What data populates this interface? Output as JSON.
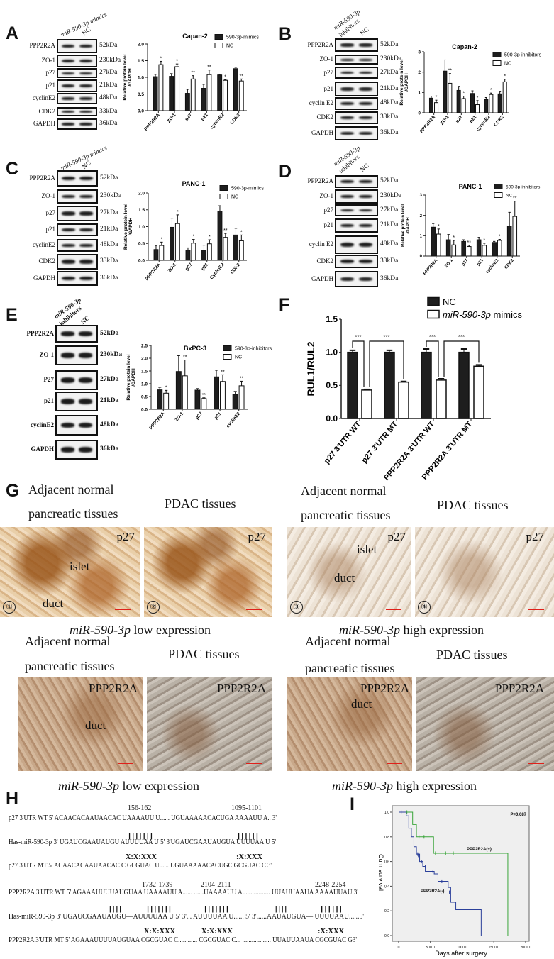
{
  "panel_labels": {
    "A": "A",
    "B": "B",
    "C": "C",
    "D": "D",
    "E": "E",
    "F": "F",
    "G": "G",
    "H": "H",
    "I": "I"
  },
  "blots": {
    "A": {
      "lanes": [
        "miR-590-3p mimics",
        "NC"
      ],
      "rows": [
        "PPP2R2A",
        "ZO-1",
        "p27",
        "p21",
        "cyclinE2",
        "CDK2",
        "GAPDH"
      ],
      "kda": [
        "52kDa",
        "230kDa",
        "27kDa",
        "21kDa",
        "48kDa",
        "33kDa",
        "36kDa"
      ]
    },
    "B": {
      "lanes": [
        "miR-590-3p",
        "inhibitors",
        "NC"
      ],
      "rows": [
        "PPP2R2A",
        "ZO-1",
        "p27",
        "p21",
        "cyclin E2",
        "CDK2",
        "GAPDH"
      ],
      "kda": [
        "52kDa",
        "230kDa",
        "27kDa",
        "21kDa",
        "48kDa",
        "33kDa",
        "36kDa"
      ]
    },
    "C": {
      "lanes": [
        "miR-590-3p mimics",
        "NC"
      ],
      "rows": [
        "PPP2R2A",
        "ZO-1",
        "p27",
        "p21",
        "cyclinE2",
        "CDK2",
        "GAPDH"
      ],
      "kda": [
        "52kDa",
        "230kDa",
        "27kDa",
        "21kDa",
        "48kDa",
        "33kDa",
        "36kDa"
      ]
    },
    "D": {
      "lanes": [
        "miR-590-3p",
        "inhibitors",
        "NC"
      ],
      "rows": [
        "PPP2R2A",
        "ZO-1",
        "p27",
        "p21",
        "cyclin E2",
        "CDK2",
        "GAPDH"
      ],
      "kda": [
        "52kDa",
        "230kDa",
        "27kDa",
        "21kDa",
        "48kDa",
        "33kDa",
        "36kDa"
      ]
    },
    "E": {
      "lanes": [
        "miR-590-3p",
        "inhibitors",
        "NC"
      ],
      "rows": [
        "PPP2R2A",
        "ZO-1",
        "P27",
        "p21",
        "cyclinE2",
        "GAPDH"
      ],
      "kda": [
        "52kDa",
        "230kDa",
        "27kDa",
        "21kDa",
        "48kDa",
        "36kDa"
      ]
    }
  },
  "chart_data": [
    {
      "id": "A",
      "type": "bar",
      "title": "Capan-2",
      "ylabel": [
        "Relative protein level",
        "/GAPDH"
      ],
      "ylim": [
        0,
        2.0
      ],
      "yticks": [
        "0.0",
        "0.5",
        "1.0",
        "1.5",
        "2.0"
      ],
      "categories": [
        "PPP2R2A",
        "ZO-1",
        "p27",
        "p21",
        "cyclinE2",
        "CDK2"
      ],
      "series": [
        {
          "name": "590-3p-mimics",
          "values": [
            1.02,
            1.03,
            0.52,
            0.67,
            1.07,
            1.26
          ],
          "errors": [
            0.07,
            0.08,
            0.12,
            0.12,
            0.02,
            0.04
          ]
        },
        {
          "name": "NC",
          "values": [
            1.38,
            1.32,
            0.95,
            1.08,
            0.91,
            0.89
          ],
          "errors": [
            0.1,
            0.08,
            0.1,
            0.14,
            0.02,
            0.06
          ]
        }
      ],
      "significance": [
        "*",
        "*",
        "**",
        "**",
        "*",
        "**"
      ],
      "legend": "top-right"
    },
    {
      "id": "B",
      "type": "bar",
      "title": "Capan-2",
      "ylabel": [
        "Relative protein level",
        "/GAPDH"
      ],
      "ylim": [
        0,
        3
      ],
      "yticks": [
        "0",
        "1",
        "2",
        "3"
      ],
      "categories": [
        "PPP2R2A",
        "ZO-1",
        "p27",
        "p21",
        "cyclinE2",
        "CDK2"
      ],
      "series": [
        {
          "name": "590-3p-inhibitors",
          "values": [
            0.72,
            2.05,
            1.1,
            0.95,
            0.65,
            0.93
          ],
          "errors": [
            0.1,
            0.55,
            0.2,
            0.13,
            0.1,
            0.13
          ]
        },
        {
          "name": "NC",
          "values": [
            0.5,
            1.45,
            0.7,
            0.4,
            0.9,
            1.52
          ],
          "errors": [
            0.12,
            0.48,
            0.12,
            0.2,
            0.07,
            0.13
          ]
        }
      ],
      "significance": [
        "*",
        "**",
        "*",
        "*",
        "*",
        "*"
      ],
      "legend": "top-right"
    },
    {
      "id": "C",
      "type": "bar",
      "title": "PANC-1",
      "ylabel": [
        "Relative protein level",
        "/GAPDH"
      ],
      "ylim": [
        0,
        2.0
      ],
      "yticks": [
        "0.0",
        "0.5",
        "1.0",
        "1.5",
        "2.0"
      ],
      "categories": [
        "PPP2R2A",
        "ZO-1",
        "p27",
        "p21",
        "CyclinE2",
        "CDK2"
      ],
      "series": [
        {
          "name": "590-3p-mimics",
          "values": [
            0.32,
            0.98,
            0.3,
            0.3,
            1.46,
            0.75
          ],
          "errors": [
            0.12,
            0.27,
            0.07,
            0.15,
            0.16,
            0.2
          ]
        },
        {
          "name": "NC",
          "values": [
            0.44,
            1.09,
            0.51,
            0.49,
            0.68,
            0.58
          ],
          "errors": [
            0.1,
            0.26,
            0.11,
            0.12,
            0.12,
            0.17
          ]
        }
      ],
      "significance": [
        "*",
        "*",
        "*",
        "*",
        "**",
        "*"
      ],
      "legend": "top-right"
    },
    {
      "id": "D",
      "type": "bar",
      "title": "PANC-1",
      "ylabel": [
        "Relative protein level",
        "/GAPDH"
      ],
      "ylim": [
        0,
        3
      ],
      "yticks": [
        "0",
        "1",
        "2",
        "3"
      ],
      "categories": [
        "PPP2R2A",
        "ZO-1",
        "p27",
        "p21",
        "cyclinE2",
        "CDK2"
      ],
      "series": [
        {
          "name": "590-3p-inhibitors",
          "values": [
            1.42,
            0.8,
            0.72,
            0.8,
            0.67,
            1.47
          ],
          "errors": [
            0.18,
            0.26,
            0.08,
            0.12,
            0.05,
            0.68
          ]
        },
        {
          "name": "NC",
          "values": [
            1.08,
            0.55,
            0.47,
            0.53,
            0.77,
            1.95
          ],
          "errors": [
            0.25,
            0.22,
            0.06,
            0.1,
            0.05,
            0.75
          ]
        }
      ],
      "significance": [
        "*",
        "*",
        "**",
        "*",
        "*",
        "**"
      ],
      "legend": "top-right"
    },
    {
      "id": "E",
      "type": "bar",
      "title": "BxPC-3",
      "ylabel": [
        "Relative protein level",
        "/GAPDH"
      ],
      "ylim": [
        0,
        2.5
      ],
      "yticks": [
        "0.0",
        "0.5",
        "1.0",
        "1.5",
        "2.0",
        "2.5"
      ],
      "categories": [
        "PPP2R2A",
        "ZO-1",
        "p27",
        "p21",
        "cyclinE2"
      ],
      "series": [
        {
          "name": "590-3p-inhibitors",
          "values": [
            0.76,
            1.48,
            0.75,
            1.27,
            0.58
          ],
          "errors": [
            0.1,
            0.62,
            0.06,
            0.26,
            0.12
          ]
        },
        {
          "name": "NC",
          "values": [
            0.63,
            1.31,
            0.42,
            1.09,
            0.92
          ],
          "errors": [
            0.11,
            0.62,
            0.03,
            0.26,
            0.18
          ]
        }
      ],
      "significance": [
        "*",
        "**",
        "**",
        "**",
        "**"
      ],
      "legend": "top-right"
    },
    {
      "id": "F",
      "type": "bar",
      "title": "",
      "ylabel": [
        "RUL1/RUL2"
      ],
      "ylim": [
        0,
        1.5
      ],
      "yticks": [
        "0.0",
        "0.5",
        "1.0",
        "1.5"
      ],
      "categories": [
        "p27 3'UTR WT",
        "p27 3'UTR MT",
        "PPP2R2A  3'UTR WT",
        "PPP2R2A  3'UTR MT"
      ],
      "series": [
        {
          "name": "NC",
          "values": [
            1.0,
            1.0,
            1.0,
            1.0
          ],
          "errors": [
            0.03,
            0.03,
            0.05,
            0.05
          ]
        },
        {
          "name": "miR-590-3p mimics",
          "values": [
            0.43,
            0.55,
            0.58,
            0.79
          ],
          "errors": [
            0.01,
            0.01,
            0.02,
            0.02
          ]
        }
      ],
      "brackets": [
        {
          "from": [
            0,
            0
          ],
          "to": [
            0,
            1
          ],
          "label": "***"
        },
        {
          "from": [
            0,
            1
          ],
          "to": [
            1,
            1
          ],
          "label": "***"
        },
        {
          "from": [
            2,
            0
          ],
          "to": [
            2,
            1
          ],
          "label": "***"
        },
        {
          "from": [
            2,
            1
          ],
          "to": [
            3,
            1
          ],
          "label": "***"
        }
      ],
      "legend": "top-right"
    },
    {
      "id": "I",
      "type": "line",
      "subtype": "kaplan-meier",
      "xlabel": "Days after surgery",
      "ylabel": "Cum survival",
      "xlim": [
        0,
        2000
      ],
      "ylim": [
        0,
        1.0
      ],
      "xticks": [
        "0",
        "500.0",
        "1000.0",
        "1500.0",
        "2000.0"
      ],
      "yticks": [
        "0.0",
        "0.2",
        "0.4",
        "0.6",
        "0.8",
        "1.0"
      ],
      "annotation": "P=0.087",
      "series": [
        {
          "name": "PPP2R2A(+)",
          "color": "#3aa53a",
          "x": [
            0,
            220,
            280,
            550,
            1720,
            1720
          ],
          "y": [
            1.0,
            0.9,
            0.8,
            0.667,
            0.667,
            0.0
          ],
          "censored": [
            [
              130,
              1.0
            ],
            [
              320,
              0.8
            ],
            [
              400,
              0.8
            ],
            [
              580,
              0.667
            ],
            [
              740,
              0.667
            ],
            [
              860,
              0.667
            ]
          ]
        },
        {
          "name": "PPP2R2A(-)",
          "color": "#2a3f9a",
          "x": [
            0,
            120,
            160,
            200,
            240,
            280,
            330,
            380,
            420,
            560,
            620,
            780,
            820,
            900,
            1300,
            1300
          ],
          "y": [
            1.0,
            0.97,
            0.87,
            0.8,
            0.72,
            0.66,
            0.6,
            0.56,
            0.52,
            0.5,
            0.44,
            0.39,
            0.27,
            0.21,
            0.21,
            0.0
          ],
          "censored": [
            [
              40,
              1.0
            ],
            [
              300,
              0.66
            ],
            [
              310,
              0.65
            ],
            [
              360,
              0.6
            ],
            [
              380,
              0.59
            ],
            [
              420,
              0.56
            ],
            [
              540,
              0.52
            ],
            [
              680,
              0.44
            ],
            [
              800,
              0.35
            ],
            [
              1000,
              0.21
            ]
          ]
        }
      ]
    }
  ],
  "G": {
    "header_adjacent_1": "Adjacent normal",
    "header_adjacent_2": "pancreatic tissues",
    "header_pdac": "PDAC tissues",
    "marker_p27": "p27",
    "marker_ppp2r2a": "PPP2R2A",
    "islet": "islet",
    "duct": "duct",
    "circled": [
      "①",
      "②",
      "③",
      "④"
    ],
    "caption_low_prefix": "miR-590-3p",
    "caption_low_suffix": " low expression",
    "caption_high_prefix": "miR-590-3p",
    "caption_high_suffix": " high expression"
  },
  "H": {
    "p27_sites": [
      "156-162",
      "1095-1101"
    ],
    "p27_wt": "p27  3'UTR WT  5' ACAACACAAUAACAC UAAAAUU U......  UGUAAAAACACUGA AAAAUU A.. 3'",
    "p27_mir": "Has-miR-590-3p   3' UGAUCGAAUAUGU  AUUUUAA U 5' 3'UGAUCGAAUAUGUA UUUUAA U  5'",
    "p27_mt": "p27  3'UTR MT  5' ACAACACAAUAACAC C GCGUAC U......  UGUAAAAACACUGC GCGUAC C 3'",
    "ppp_sites": [
      "1732-1739",
      "2104-2111",
      "2248-2254"
    ],
    "ppp_wt": "PPP2R2A 3'UTR WT  5' AGAAAUUUUAUGUAA  UAAAAUU A...... ......UAAAAUU A.................  UUAUUAAUA AAAAUUAU 3'",
    "ppp_mir": "Has-miR-590-3p          3' UGAUCGAAUAUGU—AUUUUAA U 5'  3'... AUUUUAA U...... 5'  3'......AAUAUGUA—  UUUUAAU......5'",
    "ppp_mt": "PPP2R2A 3'UTR MT   5' AGAAAUUUUAUGUAA  CGCGUAC C............  CGCGUAC  C... .................. UUAUUAAUA  CGCGUAC  G3'",
    "pair7": "|||||||",
    "pair6": "||||||",
    "pair4": "||||",
    "cross7": "X:X:XXX",
    "cross6": ":X:XXX"
  }
}
